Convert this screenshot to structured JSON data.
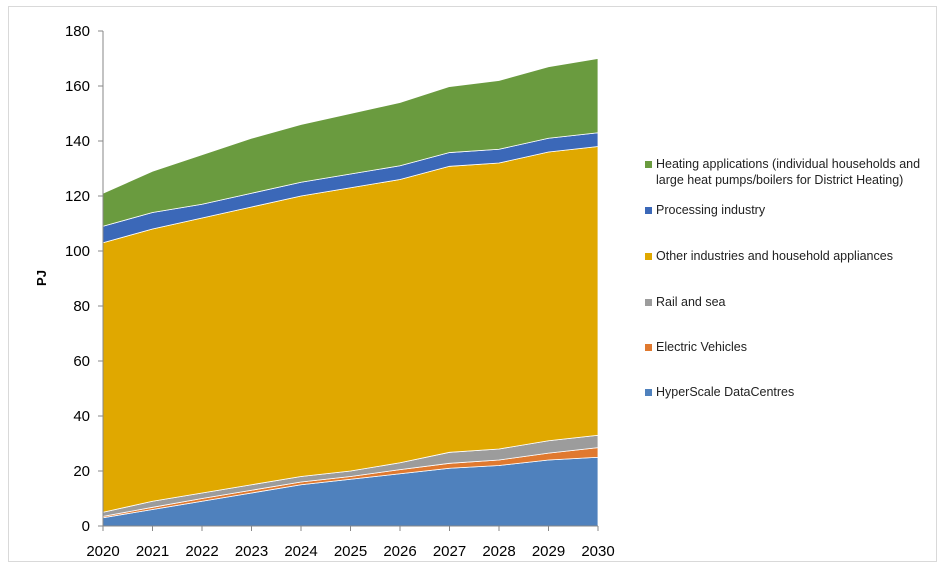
{
  "chart_data": {
    "type": "area",
    "stacked": true,
    "title": "",
    "xlabel": "",
    "ylabel": "PJ",
    "ylim": [
      0,
      180
    ],
    "yticks": [
      0,
      20,
      40,
      60,
      80,
      100,
      120,
      140,
      160,
      180
    ],
    "categories": [
      "2020",
      "2021",
      "2022",
      "2023",
      "2024",
      "2025",
      "2026",
      "2027",
      "2028",
      "2029",
      "2030"
    ],
    "grid": false,
    "legend_position": "right",
    "series": [
      {
        "name": "HyperScale DataCentres",
        "color": "#4f81bd",
        "values": [
          3,
          6,
          9,
          12,
          15,
          17,
          19,
          21,
          22,
          24,
          25
        ]
      },
      {
        "name": "Electric Vehicles",
        "color": "#e0792f",
        "values": [
          0.5,
          0.8,
          1,
          1,
          1,
          1,
          1.5,
          1.8,
          2,
          2.5,
          3.5
        ]
      },
      {
        "name": "Rail and sea",
        "color": "#9c9c9c",
        "values": [
          1.5,
          2.2,
          2,
          2,
          2,
          2,
          2.5,
          4,
          4,
          4.5,
          4.5
        ]
      },
      {
        "name": "Other industries and household appliances",
        "color": "#e0a800",
        "values": [
          98,
          99,
          100,
          101,
          102,
          103,
          103,
          104,
          104,
          105,
          105
        ]
      },
      {
        "name": "Processing industry",
        "color": "#3b68b8",
        "values": [
          6,
          6,
          5,
          5,
          5,
          5,
          5,
          5,
          5,
          5,
          5
        ]
      },
      {
        "name": "Heating applications (individual households and large heat pumps/boilers for District Heating)",
        "color": "#6a9b3f",
        "values": [
          12,
          15,
          18,
          20,
          21,
          22,
          23,
          24,
          25,
          26,
          27
        ]
      }
    ]
  }
}
